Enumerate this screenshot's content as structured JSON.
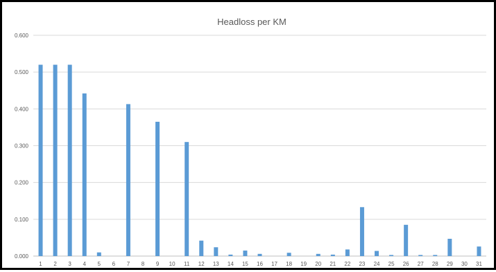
{
  "chart_data": {
    "type": "bar",
    "title": "Headloss per KM",
    "xlabel": "",
    "ylabel": "",
    "categories": [
      "1",
      "2",
      "3",
      "4",
      "5",
      "6",
      "7",
      "8",
      "9",
      "10",
      "11",
      "12",
      "13",
      "14",
      "15",
      "16",
      "17",
      "18",
      "19",
      "20",
      "21",
      "22",
      "23",
      "24",
      "25",
      "26",
      "27",
      "28",
      "29",
      "30",
      "31"
    ],
    "values": [
      0.52,
      0.52,
      0.52,
      0.442,
      0.01,
      0.0,
      0.413,
      0.0,
      0.365,
      0.0,
      0.31,
      0.042,
      0.024,
      0.004,
      0.015,
      0.006,
      0.0,
      0.009,
      0.0,
      0.006,
      0.004,
      0.018,
      0.133,
      0.014,
      0.003,
      0.085,
      0.003,
      0.003,
      0.047,
      0.0,
      0.026
    ],
    "ylim": [
      0,
      0.6
    ],
    "yticks": [
      "0.000",
      "0.100",
      "0.200",
      "0.300",
      "0.400",
      "0.500",
      "0.600"
    ],
    "grid": true,
    "legend": "none",
    "colors": {
      "bar": "#5b9bd5",
      "grid": "#d9d9d9",
      "axis": "#bfbfbf",
      "text": "#595959",
      "frame": "#000000"
    }
  }
}
